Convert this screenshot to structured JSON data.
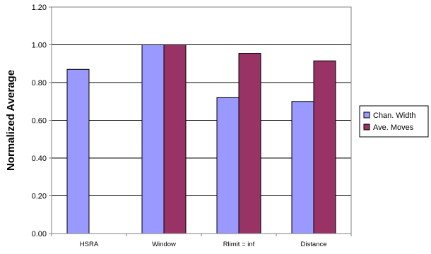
{
  "chart_data": {
    "type": "bar",
    "title": "",
    "xlabel": "",
    "ylabel": "Normalized Average",
    "ylim": [
      0,
      1.2
    ],
    "yticks": [
      "0.00",
      "0.20",
      "0.40",
      "0.60",
      "0.80",
      "1.00",
      "1.20"
    ],
    "grid": true,
    "legend_position": "right",
    "categories": [
      "HSRA",
      "Window",
      "Rlimit = inf",
      "Distance"
    ],
    "series": [
      {
        "name": "Chan. Width",
        "color": "#9999FF",
        "values": [
          0.87,
          1.0,
          0.72,
          0.7
        ]
      },
      {
        "name": "Ave. Moves",
        "color": "#993366",
        "values": [
          null,
          1.0,
          0.955,
          0.915
        ]
      }
    ]
  }
}
